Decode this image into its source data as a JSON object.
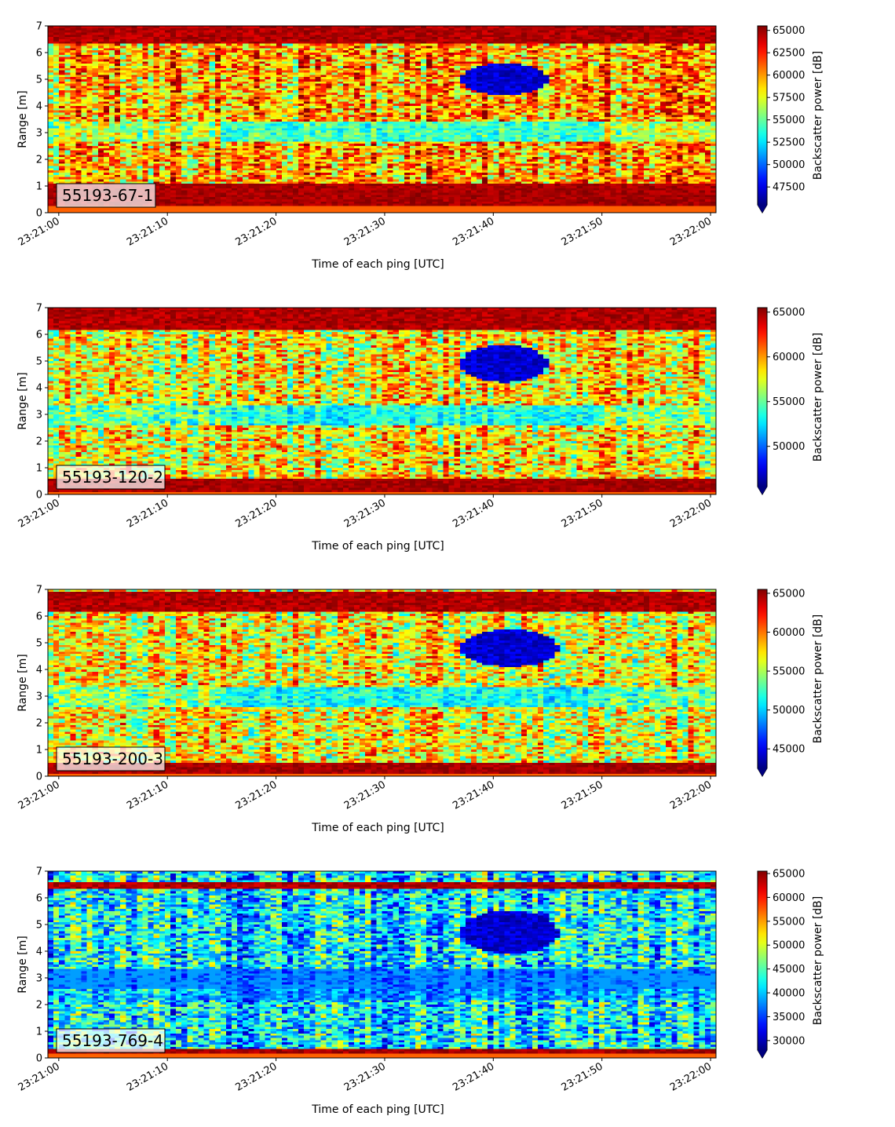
{
  "chart_data": [
    {
      "type": "heatmap",
      "label": "55193-67-1",
      "xlabel": "Time of each ping [UTC]",
      "ylabel": "Range [m]",
      "xticks": [
        "23:21:00",
        "23:21:10",
        "23:21:20",
        "23:21:30",
        "23:21:40",
        "23:21:50",
        "23:22:00"
      ],
      "yticks": [
        0,
        1,
        2,
        3,
        4,
        5,
        6,
        7
      ],
      "xlim": [
        "23:20:59",
        "23:22:00.5"
      ],
      "ylim": [
        0,
        7
      ],
      "colorbar": {
        "label": "Backscatter power [dB]",
        "colormap": "jet",
        "vmin": 45500,
        "vmax": 65500,
        "ticks": [
          47500,
          50000,
          52500,
          55000,
          57500,
          60000,
          62500,
          65000
        ],
        "extend": "min"
      },
      "features": {
        "top_band_m": [
          6.3,
          7.0
        ],
        "bottom_band_m": [
          0.25,
          1.05
        ],
        "dark_layer_m": [
          2.7,
          3.4
        ],
        "school": {
          "time_s": [
            37,
            45
          ],
          "range_m": [
            4.4,
            5.6
          ]
        },
        "background": "warm"
      }
    },
    {
      "type": "heatmap",
      "label": "55193-120-2",
      "xlabel": "Time of each ping [UTC]",
      "ylabel": "Range [m]",
      "xticks": [
        "23:21:00",
        "23:21:10",
        "23:21:20",
        "23:21:30",
        "23:21:40",
        "23:21:50",
        "23:22:00"
      ],
      "yticks": [
        0,
        1,
        2,
        3,
        4,
        5,
        6,
        7
      ],
      "xlim": [
        "23:20:59",
        "23:22:00.5"
      ],
      "ylim": [
        0,
        7
      ],
      "colorbar": {
        "label": "Backscatter power [dB]",
        "colormap": "jet",
        "vmin": 45500,
        "vmax": 65500,
        "ticks": [
          50000,
          55000,
          60000,
          65000
        ],
        "extend": "min"
      },
      "features": {
        "top_band_m": [
          6.2,
          7.0
        ],
        "bottom_band_m": [
          0.1,
          0.6
        ],
        "dark_layer_m": [
          2.6,
          3.3
        ],
        "school": {
          "time_s": [
            37,
            45
          ],
          "range_m": [
            4.2,
            5.6
          ]
        },
        "background": "mixed"
      }
    },
    {
      "type": "heatmap",
      "label": "55193-200-3",
      "xlabel": "Time of each ping [UTC]",
      "ylabel": "Range [m]",
      "xticks": [
        "23:21:00",
        "23:21:10",
        "23:21:20",
        "23:21:30",
        "23:21:40",
        "23:21:50",
        "23:22:00"
      ],
      "yticks": [
        0,
        1,
        2,
        3,
        4,
        5,
        6,
        7
      ],
      "xlim": [
        "23:20:59",
        "23:22:00.5"
      ],
      "ylim": [
        0,
        7
      ],
      "colorbar": {
        "label": "Backscatter power [dB]",
        "colormap": "jet",
        "vmin": 42500,
        "vmax": 65500,
        "ticks": [
          45000,
          50000,
          55000,
          60000,
          65000
        ],
        "extend": "min"
      },
      "features": {
        "top_band_m": [
          6.2,
          6.9
        ],
        "bottom_band_m": [
          0.1,
          0.5
        ],
        "dark_layer_m": [
          2.6,
          3.3
        ],
        "school": {
          "time_s": [
            37,
            46
          ],
          "range_m": [
            4.1,
            5.5
          ]
        },
        "background": "mixed"
      }
    },
    {
      "type": "heatmap",
      "label": "55193-769-4",
      "xlabel": "Time of each ping [UTC]",
      "ylabel": "Range [m]",
      "xticks": [
        "23:21:00",
        "23:21:10",
        "23:21:20",
        "23:21:30",
        "23:21:40",
        "23:21:50",
        "23:22:00"
      ],
      "yticks": [
        0,
        1,
        2,
        3,
        4,
        5,
        6,
        7
      ],
      "xlim": [
        "23:20:59",
        "23:22:00.5"
      ],
      "ylim": [
        0,
        7
      ],
      "colorbar": {
        "label": "Backscatter power [dB]",
        "colormap": "jet",
        "vmin": 28000,
        "vmax": 65500,
        "ticks": [
          30000,
          35000,
          40000,
          45000,
          50000,
          55000,
          60000,
          65000
        ],
        "extend": "min"
      },
      "features": {
        "top_band_m": [
          6.3,
          6.6
        ],
        "bottom_band_m": [
          0.2,
          0.35
        ],
        "dark_layer_m": [
          2.2,
          3.3
        ],
        "school": {
          "time_s": [
            37,
            46
          ],
          "range_m": [
            3.9,
            5.5
          ]
        },
        "background": "cool"
      }
    }
  ]
}
